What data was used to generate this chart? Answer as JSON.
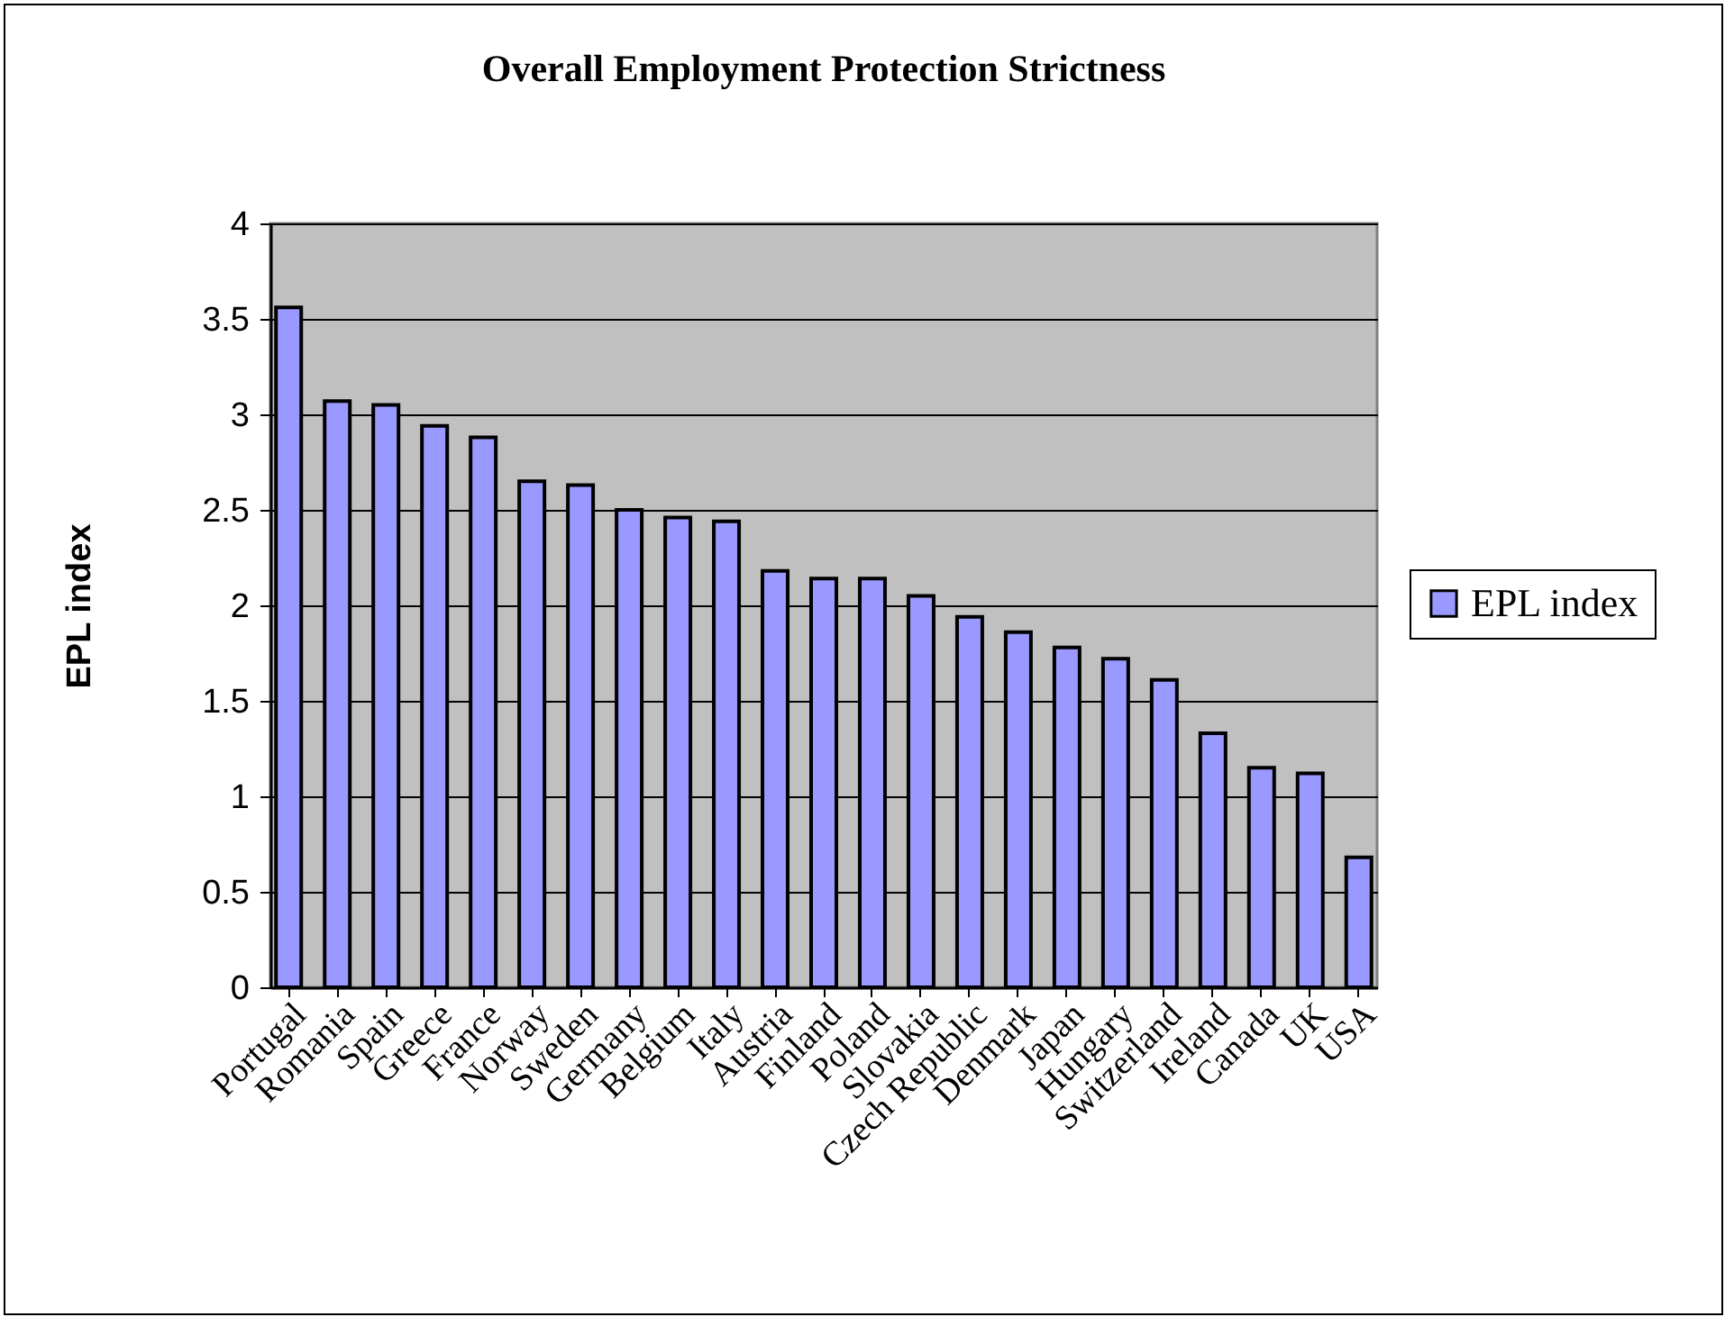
{
  "chart_data": {
    "type": "bar",
    "title": "Overall Employment Protection Strictness",
    "ylabel": "EPL index",
    "categories": [
      "Portugal",
      "Romania",
      "Spain",
      "Greece",
      "France",
      "Norway",
      "Sweden",
      "Germany",
      "Belgium",
      "Italy",
      "Austria",
      "Finland",
      "Poland",
      "Slovakia",
      "Czech Republic",
      "Denmark",
      "Japan",
      "Hungary",
      "Switzerland",
      "Ireland",
      "Canada",
      "UK",
      "USA"
    ],
    "series": [
      {
        "name": "EPL index",
        "color": "#9999ff",
        "values": [
          3.56,
          3.07,
          3.05,
          2.94,
          2.88,
          2.65,
          2.63,
          2.5,
          2.46,
          2.44,
          2.18,
          2.14,
          2.14,
          2.05,
          1.94,
          1.86,
          1.78,
          1.72,
          1.61,
          1.33,
          1.15,
          1.12,
          0.68
        ]
      }
    ],
    "ylim": [
      0,
      4
    ],
    "yticks": [
      0,
      0.5,
      1,
      1.5,
      2,
      2.5,
      3,
      3.5,
      4
    ],
    "grid": "y",
    "legend": "right"
  }
}
